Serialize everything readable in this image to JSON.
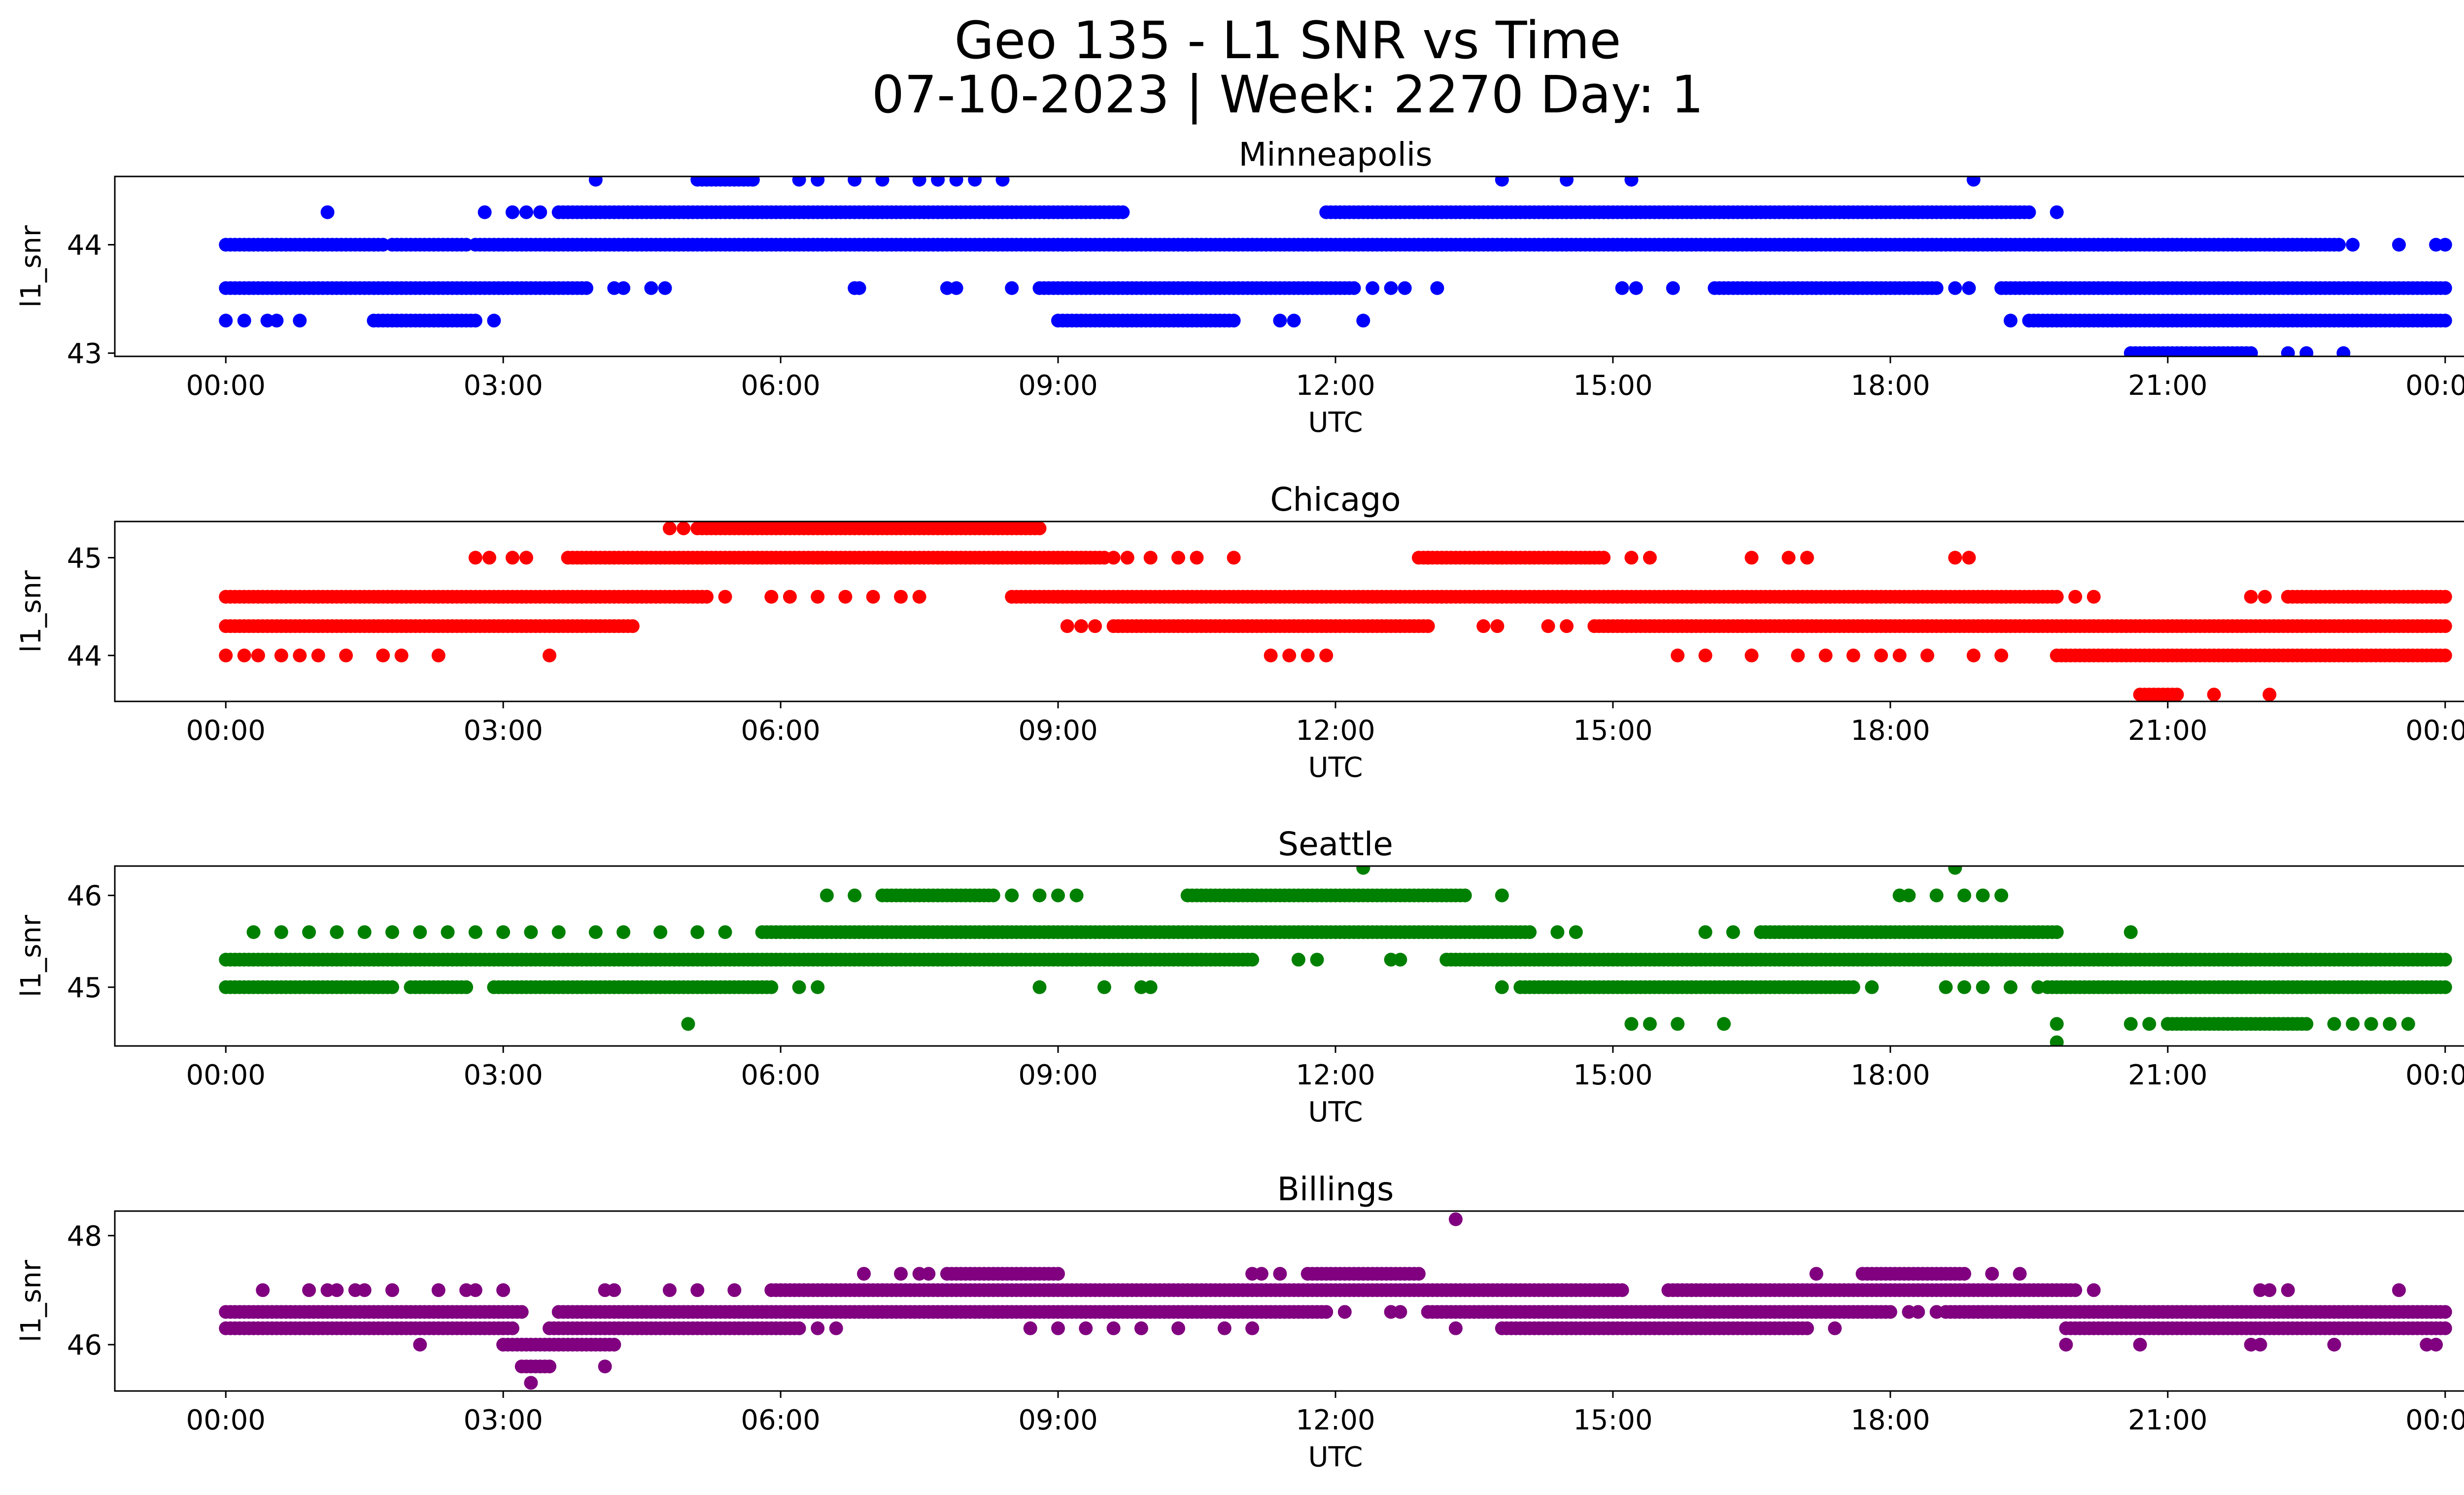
{
  "figure": {
    "title_line1": "Geo 135 - L1 SNR vs Time",
    "title_line2": "07-10-2023 | Week: 2270 Day: 1"
  },
  "chart_data": [
    {
      "type": "scatter",
      "title": "Minneapolis",
      "xlabel": "UTC",
      "ylabel": "l1_snr",
      "color": "#0000ff",
      "x_unit": "hours UTC",
      "xlim": [
        "00:00",
        "00:00 (+1 day)"
      ],
      "x_ticks": [
        "00:00",
        "03:00",
        "06:00",
        "09:00",
        "12:00",
        "15:00",
        "18:00",
        "21:00",
        "00:00"
      ],
      "ylim": [
        42.97,
        44.63
      ],
      "y_ticks": [
        43,
        44
      ],
      "y_tick_labels": [
        "43",
        "44"
      ],
      "levels": [
        {
          "y": 44.0,
          "ranges": [
            [
              0.0,
              1.7
            ],
            [
              1.8,
              2.6
            ],
            [
              2.7,
              22.8
            ]
          ],
          "points": [
            22.85,
            23.0,
            23.5,
            23.9,
            24.0
          ]
        },
        {
          "y": 44.3,
          "ranges": [
            [
              3.6,
              9.7
            ],
            [
              11.9,
              19.5
            ]
          ],
          "points": [
            1.1,
            2.8,
            3.1,
            3.25,
            3.4,
            19.8
          ]
        },
        {
          "y": 44.6,
          "ranges": [
            [
              5.1,
              5.7
            ]
          ],
          "points": [
            4.0,
            6.2,
            6.4,
            6.8,
            7.1,
            7.5,
            7.7,
            7.9,
            8.1,
            8.4,
            13.8,
            14.5,
            15.2,
            18.9
          ]
        },
        {
          "y": 43.6,
          "ranges": [
            [
              0.0,
              3.9
            ],
            [
              8.8,
              12.2
            ],
            [
              16.1,
              18.5
            ],
            [
              19.2,
              24.0
            ]
          ],
          "points": [
            4.2,
            4.3,
            4.6,
            4.75,
            6.8,
            6.85,
            7.8,
            7.9,
            8.5,
            12.4,
            12.6,
            12.75,
            13.1,
            15.1,
            15.25,
            15.65,
            18.7,
            18.85
          ]
        },
        {
          "y": 43.3,
          "ranges": [
            [
              1.6,
              2.7
            ],
            [
              9.0,
              10.9
            ],
            [
              19.5,
              24.0
            ]
          ],
          "points": [
            0.0,
            0.2,
            0.45,
            0.55,
            0.8,
            2.9,
            11.4,
            11.55,
            12.3,
            19.3
          ]
        },
        {
          "y": 43.0,
          "ranges": [
            [
              20.6,
              21.9
            ]
          ],
          "points": [
            22.3,
            22.5,
            22.9
          ]
        }
      ]
    },
    {
      "type": "scatter",
      "title": "Chicago",
      "xlabel": "UTC",
      "ylabel": "l1_snr",
      "color": "#ff0000",
      "x_unit": "hours UTC",
      "xlim": [
        "00:00",
        "00:00 (+1 day)"
      ],
      "x_ticks": [
        "00:00",
        "03:00",
        "06:00",
        "09:00",
        "12:00",
        "15:00",
        "18:00",
        "21:00",
        "00:00"
      ],
      "ylim": [
        43.53,
        45.37
      ],
      "y_ticks": [
        44,
        45
      ],
      "y_tick_labels": [
        "44",
        "45"
      ],
      "levels": [
        {
          "y": 45.3,
          "ranges": [
            [
              5.1,
              8.8
            ]
          ],
          "points": [
            4.8,
            4.95
          ]
        },
        {
          "y": 45.0,
          "ranges": [
            [
              3.7,
              9.5
            ],
            [
              12.9,
              14.9
            ]
          ],
          "points": [
            2.7,
            2.85,
            3.1,
            3.25,
            9.6,
            9.75,
            10.0,
            10.3,
            10.5,
            10.9,
            13.0,
            15.2,
            15.4,
            16.5,
            16.9,
            17.1,
            18.7,
            18.85
          ]
        },
        {
          "y": 44.6,
          "ranges": [
            [
              0.0,
              5.2
            ],
            [
              8.5,
              19.8
            ],
            [
              22.3,
              24.0
            ]
          ],
          "points": [
            5.4,
            5.9,
            6.1,
            6.4,
            6.7,
            7.0,
            7.3,
            7.5,
            20.0,
            20.2,
            21.9,
            22.05
          ]
        },
        {
          "y": 44.3,
          "ranges": [
            [
              0.0,
              4.4
            ],
            [
              9.6,
              13.0
            ],
            [
              14.8,
              24.0
            ]
          ],
          "points": [
            9.1,
            9.25,
            9.4,
            13.6,
            13.75,
            14.3,
            14.5
          ]
        },
        {
          "y": 44.0,
          "ranges": [
            [
              19.8,
              24.0
            ]
          ],
          "points": [
            0.0,
            0.2,
            0.35,
            0.6,
            0.8,
            1.0,
            1.3,
            1.7,
            1.9,
            2.3,
            3.5,
            11.3,
            11.5,
            11.7,
            11.9,
            15.7,
            16.0,
            16.5,
            17.0,
            17.3,
            17.6,
            17.9,
            18.1,
            18.4,
            18.9,
            19.2
          ]
        },
        {
          "y": 43.6,
          "ranges": [
            [
              20.7,
              21.1
            ]
          ],
          "points": [
            21.5,
            22.1
          ]
        }
      ]
    },
    {
      "type": "scatter",
      "title": "Seattle",
      "xlabel": "UTC",
      "ylabel": "l1_snr",
      "color": "#008000",
      "x_unit": "hours UTC",
      "xlim": [
        "00:00",
        "00:00 (+1 day)"
      ],
      "x_ticks": [
        "00:00",
        "03:00",
        "06:00",
        "09:00",
        "12:00",
        "15:00",
        "18:00",
        "21:00",
        "00:00"
      ],
      "ylim": [
        44.36,
        46.32
      ],
      "y_ticks": [
        45,
        46
      ],
      "y_tick_labels": [
        "45",
        "46"
      ],
      "levels": [
        {
          "y": 46.3,
          "ranges": [],
          "points": [
            12.3,
            18.7
          ]
        },
        {
          "y": 46.0,
          "ranges": [
            [
              7.1,
              8.3
            ],
            [
              10.4,
              13.4
            ]
          ],
          "points": [
            6.5,
            6.8,
            8.5,
            8.8,
            9.0,
            9.2,
            13.8,
            18.1,
            18.2,
            18.5,
            18.8,
            19.0,
            19.2
          ]
        },
        {
          "y": 45.6,
          "ranges": [
            [
              5.8,
              14.1
            ],
            [
              16.6,
              19.8
            ]
          ],
          "points": [
            0.3,
            0.6,
            0.9,
            1.2,
            1.5,
            1.8,
            2.1,
            2.4,
            2.7,
            3.0,
            3.3,
            3.6,
            4.0,
            4.3,
            4.7,
            5.1,
            5.4,
            14.4,
            14.6,
            16.0,
            16.3,
            20.6
          ]
        },
        {
          "y": 45.3,
          "ranges": [
            [
              0.0,
              11.1
            ],
            [
              13.2,
              24.0
            ]
          ],
          "points": [
            11.6,
            11.8,
            12.6,
            12.7
          ]
        },
        {
          "y": 45.0,
          "ranges": [
            [
              0.0,
              1.8
            ],
            [
              2.0,
              2.6
            ],
            [
              2.9,
              5.9
            ],
            [
              14.0,
              17.6
            ],
            [
              19.7,
              24.0
            ]
          ],
          "points": [
            6.2,
            6.4,
            8.8,
            9.5,
            9.9,
            10.0,
            13.8,
            17.8,
            18.6,
            18.8,
            19.0,
            19.3,
            19.6
          ]
        },
        {
          "y": 44.6,
          "ranges": [
            [
              21.0,
              22.5
            ]
          ],
          "points": [
            5.0,
            15.2,
            15.4,
            15.7,
            16.2,
            19.8,
            20.6,
            20.8,
            22.8,
            23.0,
            23.2,
            23.4,
            23.6
          ]
        },
        {
          "y": 44.4,
          "ranges": [],
          "points": [
            19.8
          ]
        }
      ]
    },
    {
      "type": "scatter",
      "title": "Billings",
      "xlabel": "UTC",
      "ylabel": "l1_snr",
      "color": "#800080",
      "x_unit": "hours UTC",
      "xlim": [
        "00:00",
        "00:00 (+1 day)"
      ],
      "x_ticks": [
        "00:00",
        "03:00",
        "06:00",
        "09:00",
        "12:00",
        "15:00",
        "18:00",
        "21:00",
        "00:00"
      ],
      "ylim": [
        45.15,
        48.45
      ],
      "y_ticks": [
        46,
        48
      ],
      "y_tick_labels": [
        "46",
        "48"
      ],
      "levels": [
        {
          "y": 48.3,
          "ranges": [],
          "points": [
            13.3
          ]
        },
        {
          "y": 47.3,
          "ranges": [
            [
              7.8,
              9.0
            ],
            [
              11.7,
              12.9
            ],
            [
              17.7,
              18.8
            ]
          ],
          "points": [
            6.9,
            7.3,
            7.5,
            7.6,
            11.1,
            11.2,
            11.4,
            17.2,
            19.1,
            19.4
          ]
        },
        {
          "y": 47.0,
          "ranges": [
            [
              5.9,
              15.1
            ],
            [
              15.6,
              20.0
            ]
          ],
          "points": [
            0.4,
            0.9,
            1.1,
            1.2,
            1.4,
            1.5,
            1.8,
            2.3,
            2.6,
            2.7,
            3.0,
            4.1,
            4.2,
            4.8,
            5.1,
            5.5,
            20.2,
            22.0,
            22.1,
            22.3,
            23.5
          ]
        },
        {
          "y": 46.6,
          "ranges": [
            [
              0.0,
              3.2
            ],
            [
              3.6,
              11.9
            ],
            [
              13.0,
              18.0
            ],
            [
              18.6,
              24.0
            ]
          ],
          "points": [
            12.1,
            12.6,
            12.7,
            18.2,
            18.3,
            18.5
          ]
        },
        {
          "y": 46.3,
          "ranges": [
            [
              0.0,
              3.1
            ],
            [
              3.5,
              6.2
            ],
            [
              13.8,
              17.1
            ],
            [
              19.9,
              24.0
            ]
          ],
          "points": [
            6.4,
            6.6,
            8.7,
            9.0,
            9.3,
            9.6,
            9.9,
            10.3,
            10.8,
            11.1,
            13.3,
            17.4
          ]
        },
        {
          "y": 46.0,
          "ranges": [
            [
              3.0,
              4.2
            ]
          ],
          "points": [
            2.1,
            19.9,
            20.7,
            21.9,
            22.0,
            22.8,
            23.8,
            23.9
          ]
        },
        {
          "y": 45.6,
          "ranges": [
            [
              3.2,
              3.5
            ]
          ],
          "points": [
            4.1
          ]
        },
        {
          "y": 45.3,
          "ranges": [],
          "points": [
            3.3
          ]
        }
      ]
    }
  ]
}
